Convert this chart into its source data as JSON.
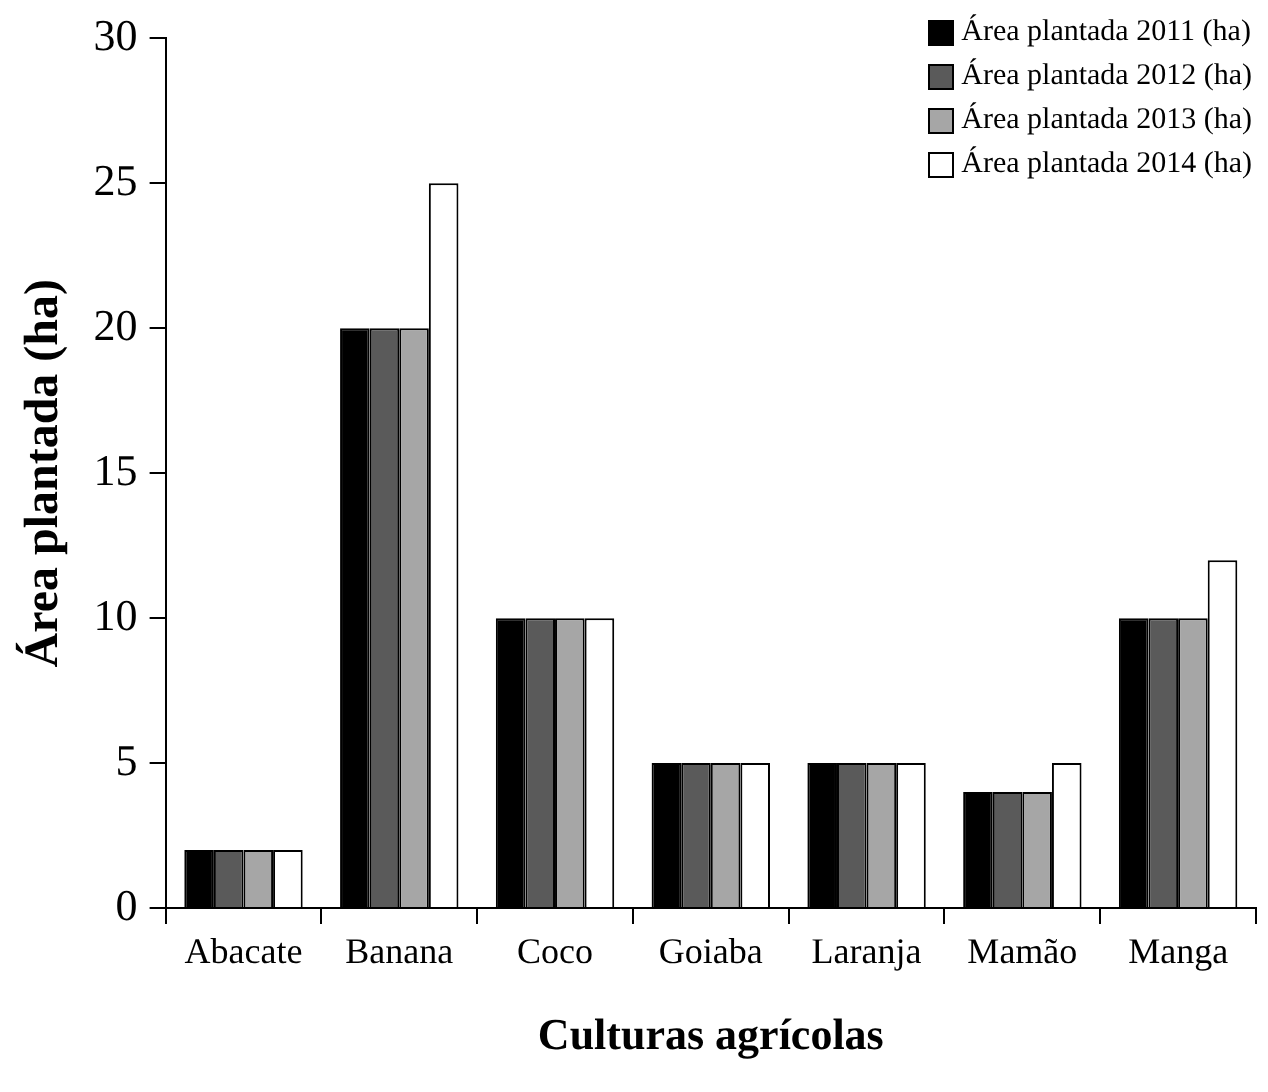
{
  "chart_data": {
    "type": "bar",
    "xlabel": "Culturas agrícolas",
    "ylabel": "Área plantada (ha)",
    "categories": [
      "Abacate",
      "Banana",
      "Coco",
      "Goiaba",
      "Laranja",
      "Mamão",
      "Manga"
    ],
    "series": [
      {
        "name": "Área plantada 2011 (ha)",
        "color": "#000000",
        "values": [
          2,
          20,
          10,
          5,
          5,
          4,
          10
        ]
      },
      {
        "name": "Área plantada 2012 (ha)",
        "color": "#5a5a5a",
        "values": [
          2,
          20,
          10,
          5,
          5,
          4,
          10
        ]
      },
      {
        "name": "Área plantada 2013 (ha)",
        "color": "#a6a6a6",
        "values": [
          2,
          20,
          10,
          5,
          5,
          4,
          10
        ]
      },
      {
        "name": "Área plantada 2014 (ha)",
        "color": "#ffffff",
        "values": [
          2,
          25,
          10,
          5,
          5,
          5,
          12
        ]
      }
    ],
    "ylim": [
      0,
      30
    ],
    "yticks": [
      0,
      5,
      10,
      15,
      20,
      25,
      30
    ],
    "grid": false,
    "legend": "top right"
  }
}
